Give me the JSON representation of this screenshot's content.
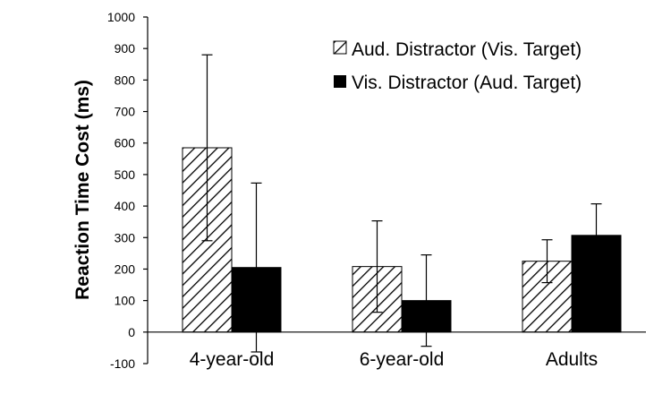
{
  "chart_data": {
    "type": "bar",
    "title": "",
    "xlabel": "",
    "ylabel": "Reaction Time Cost (ms)",
    "categories": [
      "4-year-old",
      "6-year-old",
      "Adults"
    ],
    "ylim": [
      -100,
      1000
    ],
    "yticks": [
      -100,
      0,
      100,
      200,
      300,
      400,
      500,
      600,
      700,
      800,
      900,
      1000
    ],
    "grid": false,
    "legend_position": "top-right",
    "series": [
      {
        "name": "Aud. Distractor (Vis. Target)",
        "pattern": "hatched",
        "color": "#000000",
        "values": [
          585,
          208,
          225
        ],
        "error": [
          295,
          145,
          68
        ]
      },
      {
        "name": "Vis. Distractor (Aud. Target)",
        "pattern": "solid",
        "color": "#000000",
        "values": [
          205,
          100,
          307
        ],
        "error": [
          268,
          145,
          100
        ]
      }
    ]
  }
}
